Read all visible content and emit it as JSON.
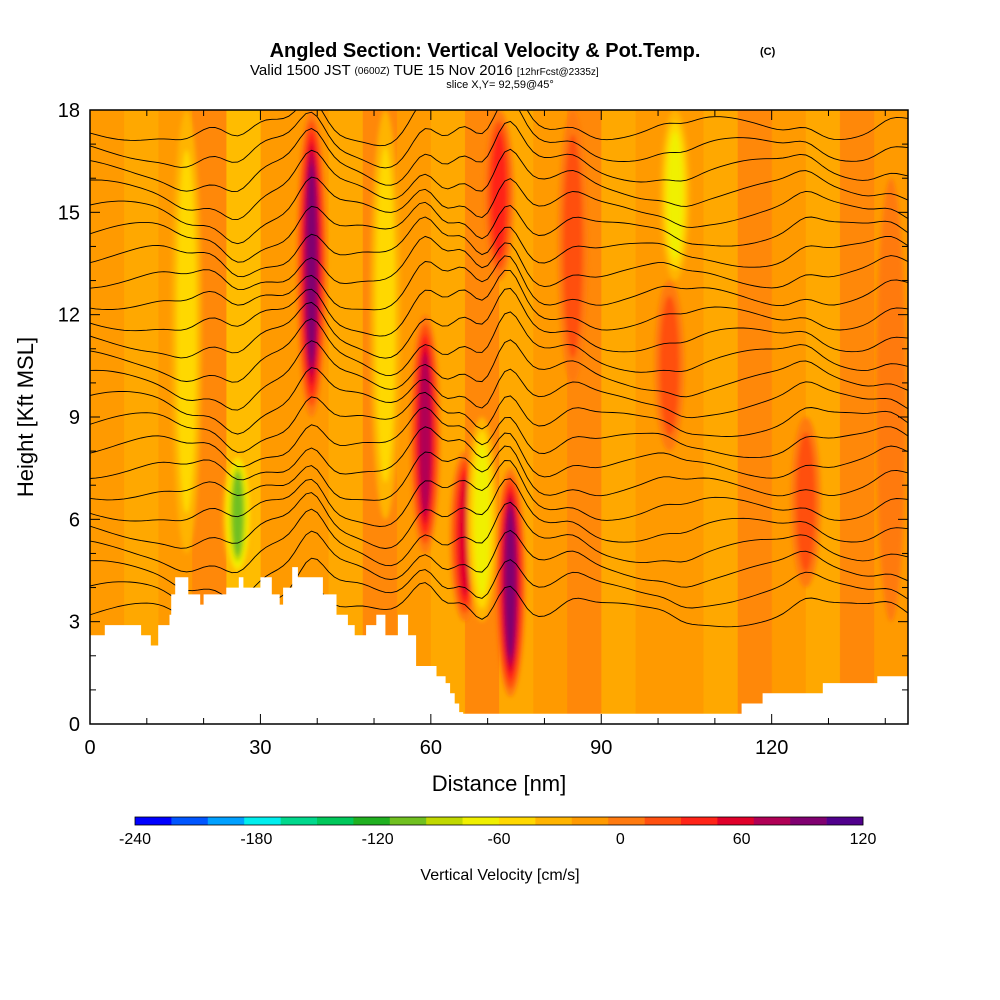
{
  "chart_data": {
    "type": "heatmap",
    "title": "Angled Section: Vertical Velocity & Pot.Temp.",
    "title_unit": "(C)",
    "subtitle": {
      "prefix": "Valid 1500 JST",
      "utc": "(0600Z)",
      "date": "TUE 15 Nov 2016",
      "forecast": "[12hrFcst@2335z]"
    },
    "slice_label": "slice X,Y= 92,59@45°",
    "xlabel": "Distance [nm]",
    "ylabel": "Height [Kft MSL]",
    "xlim": [
      0,
      144
    ],
    "ylim": [
      0,
      18
    ],
    "x_ticks": [
      0,
      30,
      60,
      90,
      120
    ],
    "y_ticks": [
      0,
      3,
      6,
      9,
      12,
      15,
      18
    ],
    "background_value": 0,
    "updrafts": [
      {
        "x": 39,
        "from": 9,
        "to": 18,
        "peak": 120
      },
      {
        "x": 59,
        "from": 5,
        "to": 12,
        "peak": 110
      },
      {
        "x": 66,
        "from": 3,
        "to": 8,
        "peak": 90
      },
      {
        "x": 74,
        "from": 0.8,
        "to": 7.5,
        "peak": 120
      },
      {
        "x": 72,
        "from": 13,
        "to": 18,
        "peak": 60
      },
      {
        "x": 85,
        "from": 10,
        "to": 18,
        "peak": 40
      },
      {
        "x": 102,
        "from": 8,
        "to": 13,
        "peak": 40
      },
      {
        "x": 126,
        "from": 4,
        "to": 9,
        "peak": 40
      },
      {
        "x": 141,
        "from": 3,
        "to": 16,
        "peak": 35
      }
    ],
    "downdrafts": [
      {
        "x": 26,
        "from": 4.3,
        "to": 8,
        "peak": -110
      },
      {
        "x": 69,
        "from": 3,
        "to": 9,
        "peak": -70
      },
      {
        "x": 103,
        "from": 13,
        "to": 18,
        "peak": -60
      },
      {
        "x": 17,
        "from": 5,
        "to": 18,
        "peak": -50
      },
      {
        "x": 52,
        "from": 6,
        "to": 18,
        "peak": -40
      }
    ],
    "terrain": {
      "x": [
        0,
        2.6,
        2.6,
        9,
        9,
        10.7,
        10.7,
        12,
        12,
        14,
        14,
        14.3,
        14.3,
        15,
        15,
        17.3,
        17.3,
        19.4,
        19.4,
        20,
        20,
        24,
        24,
        26.2,
        26.2,
        27,
        27,
        30,
        30,
        32,
        32,
        33.4,
        33.4,
        34,
        34,
        35.6,
        35.6,
        36.6,
        36.6,
        41,
        41,
        43.4,
        43.4,
        45.4,
        45.4,
        46.6,
        46.6,
        48.6,
        48.6,
        50.4,
        50.4,
        52,
        52,
        54.2,
        54.2,
        56,
        56,
        57.4,
        57.4,
        61,
        61,
        62.6,
        62.6,
        63.4,
        63.4,
        64.2,
        64.2,
        65,
        65,
        65.7,
        65.7,
        66.6,
        66.6,
        67.4,
        67.4,
        71.4,
        71.4,
        114.7,
        114.7,
        118.4,
        118.4,
        129,
        129,
        138.6,
        138.6,
        144
      ],
      "y": [
        2.6,
        2.6,
        2.9,
        2.9,
        2.6,
        2.6,
        2.3,
        2.3,
        2.9,
        2.9,
        3.2,
        3.2,
        3.8,
        3.8,
        4.3,
        4.3,
        3.8,
        3.8,
        3.5,
        3.5,
        3.8,
        3.8,
        4.0,
        4.0,
        4.3,
        4.3,
        4.0,
        4.0,
        4.3,
        4.3,
        3.8,
        3.8,
        3.5,
        3.5,
        4.0,
        4.0,
        4.6,
        4.6,
        4.3,
        4.3,
        3.8,
        3.8,
        3.2,
        3.2,
        2.9,
        2.9,
        2.6,
        2.6,
        2.9,
        2.9,
        3.2,
        3.2,
        2.6,
        2.6,
        3.2,
        3.2,
        2.6,
        2.6,
        1.7,
        1.7,
        1.4,
        1.4,
        1.2,
        1.2,
        0.9,
        0.9,
        0.6,
        0.6,
        0.35,
        0.35,
        0.3,
        0.3,
        0.3,
        0.3,
        0.3,
        0.3,
        0.3,
        0.3,
        0.6,
        0.6,
        0.9,
        0.9,
        1.2,
        1.2,
        1.4,
        1.4
      ]
    },
    "theta_contours": {
      "count": 24,
      "base": 3.2,
      "spacing": 0.62
    },
    "colorbar": {
      "label": "Vertical Velocity [cm/s]",
      "min": -240,
      "max": 120,
      "step": 20,
      "tick_labels": [
        "-240",
        "-180",
        "-120",
        "-60",
        "0",
        "60",
        "120"
      ],
      "colors": [
        "#0000ff",
        "#0055ff",
        "#00a0ff",
        "#00eeee",
        "#00d88c",
        "#00c85a",
        "#20b020",
        "#70c020",
        "#c0d800",
        "#f0f000",
        "#ffd800",
        "#ffb400",
        "#ff9a00",
        "#ff7a10",
        "#ff5010",
        "#ff2418",
        "#e0002a",
        "#b00055",
        "#800070",
        "#50008c"
      ]
    }
  }
}
